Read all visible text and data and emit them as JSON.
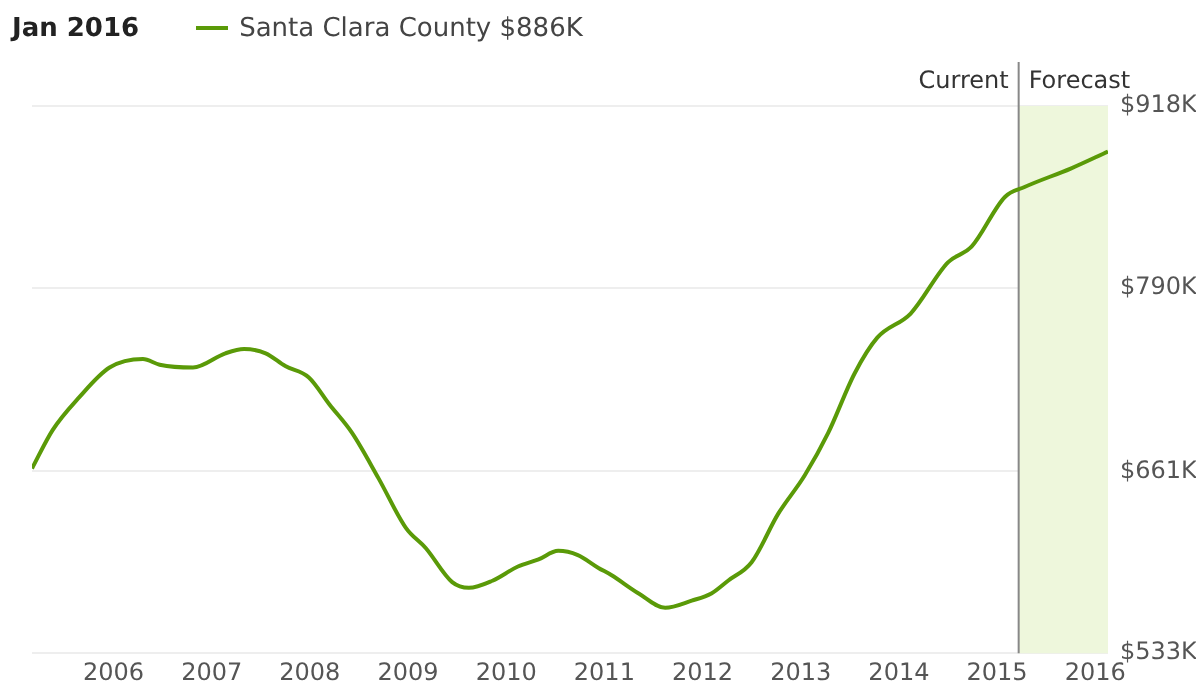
{
  "chart_data": {
    "type": "line",
    "legend_title": "Jan 2016",
    "legend": "top left",
    "grid": "y",
    "marker": "none",
    "line_style": "solid",
    "xlim": [
      2005.17,
      2016.13
    ],
    "xticks": [
      2006,
      2007,
      2008,
      2009,
      2010,
      2011,
      2012,
      2013,
      2014,
      2015,
      2016
    ],
    "ylim": [
      533,
      918
    ],
    "yticks": [
      {
        "value": 533,
        "label": "$533K"
      },
      {
        "value": 661,
        "label": "$661K"
      },
      {
        "value": 790,
        "label": "$790K"
      },
      {
        "value": 918,
        "label": "$918K"
      }
    ],
    "ref_lines": [
      {
        "axis": "x",
        "value": 2015.22,
        "label": "Current",
        "color": "#888888"
      }
    ],
    "bands": [
      {
        "axis": "x",
        "from": 2015.22,
        "to": 2016.13,
        "label": "Forecast",
        "color": "#eef7dc"
      }
    ],
    "series": [
      {
        "name": "Santa Clara County $886K",
        "color": "#5a9a08",
        "x": [
          2005.17,
          2005.38,
          2005.65,
          2005.96,
          2006.3,
          2006.47,
          2006.81,
          2007.14,
          2007.33,
          2007.55,
          2007.75,
          2007.99,
          2008.2,
          2008.43,
          2008.7,
          2008.98,
          2009.18,
          2009.45,
          2009.62,
          2009.86,
          2010.12,
          2010.33,
          2010.53,
          2010.73,
          2010.94,
          2011.07,
          2011.35,
          2011.62,
          2011.89,
          2012.09,
          2012.26,
          2012.5,
          2012.77,
          2013.04,
          2013.28,
          2013.55,
          2013.78,
          2014.12,
          2014.5,
          2014.74,
          2015.08,
          2015.28,
          2015.75,
          2016.13
        ],
        "values": [
          663,
          690,
          713,
          734,
          740,
          736,
          734,
          744,
          747,
          744,
          735,
          727,
          708,
          688,
          656,
          621,
          607,
          583,
          579,
          584,
          594,
          599,
          605,
          602,
          593,
          588,
          575,
          565,
          570,
          575,
          584,
          597,
          631,
          658,
          688,
          730,
          755,
          772,
          808,
          819,
          854,
          861,
          874,
          886
        ]
      }
    ]
  }
}
